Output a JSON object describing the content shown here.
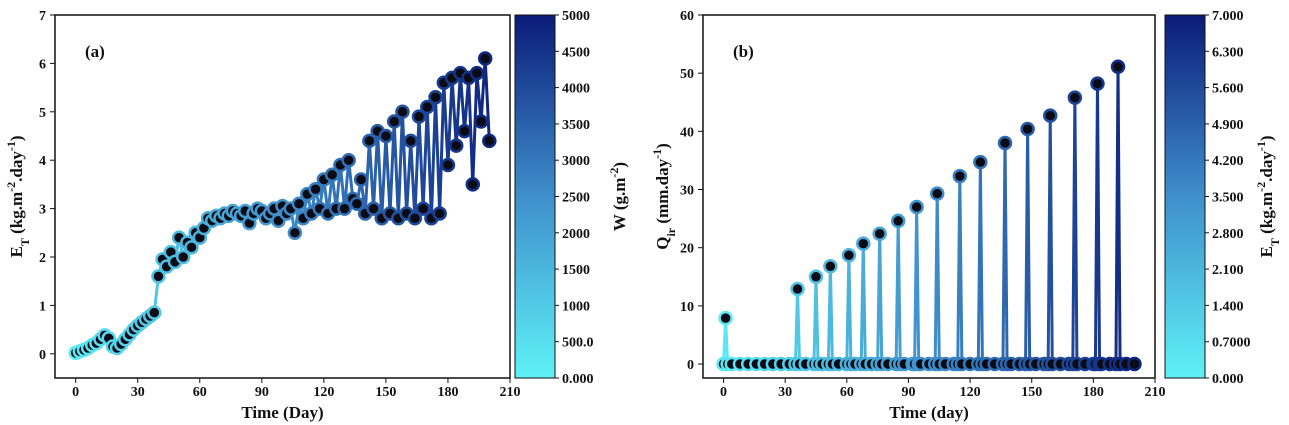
{
  "chart_data": [
    {
      "type": "line",
      "title": "(a)",
      "xlabel": [
        {
          "text": "Time (Day)"
        }
      ],
      "ylabel": [
        {
          "text": "E"
        },
        {
          "text": "T",
          "shift": "sub"
        },
        {
          "text": " (kg.m"
        },
        {
          "text": "-2",
          "shift": "super"
        },
        {
          "text": ".day"
        },
        {
          "text": "-1",
          "shift": "super"
        },
        {
          "text": ")"
        }
      ],
      "x": [
        0,
        2,
        4,
        6,
        8,
        10,
        12,
        14,
        16,
        18,
        20,
        22,
        24,
        26,
        28,
        30,
        32,
        34,
        36,
        38,
        40,
        42,
        44,
        46,
        48,
        50,
        52,
        54,
        56,
        58,
        60,
        62,
        64,
        66,
        68,
        70,
        72,
        74,
        76,
        78,
        80,
        82,
        84,
        86,
        88,
        90,
        92,
        94,
        96,
        98,
        100,
        102,
        104,
        106,
        108,
        110,
        112,
        114,
        116,
        118,
        120,
        122,
        124,
        126,
        128,
        130,
        132,
        134,
        136,
        138,
        140,
        142,
        144,
        146,
        148,
        150,
        152,
        154,
        156,
        158,
        160,
        162,
        164,
        166,
        168,
        170,
        172,
        174,
        176,
        178,
        180,
        182,
        184,
        186,
        188,
        190,
        192,
        194,
        196,
        198,
        200
      ],
      "values": [
        0.02,
        0.05,
        0.08,
        0.12,
        0.18,
        0.22,
        0.3,
        0.38,
        0.32,
        0.15,
        0.12,
        0.2,
        0.3,
        0.4,
        0.5,
        0.58,
        0.65,
        0.72,
        0.78,
        0.85,
        1.6,
        1.95,
        1.8,
        2.1,
        1.9,
        2.4,
        2.0,
        2.3,
        2.2,
        2.5,
        2.4,
        2.6,
        2.8,
        2.75,
        2.85,
        2.8,
        2.9,
        2.85,
        2.95,
        2.9,
        2.85,
        2.95,
        2.7,
        2.9,
        3.0,
        2.95,
        2.8,
        2.9,
        3.0,
        2.75,
        3.05,
        2.9,
        3.0,
        2.5,
        3.1,
        2.8,
        3.3,
        2.9,
        3.4,
        3.0,
        3.6,
        2.9,
        3.7,
        3.0,
        3.9,
        3.0,
        4.0,
        3.2,
        3.1,
        3.6,
        2.9,
        4.4,
        3.0,
        4.6,
        2.8,
        4.5,
        2.9,
        4.8,
        2.8,
        5.0,
        2.9,
        4.4,
        2.8,
        4.9,
        3.0,
        5.1,
        2.8,
        5.3,
        2.9,
        5.6,
        3.9,
        5.7,
        4.3,
        5.8,
        4.6,
        5.7,
        3.5,
        5.8,
        4.8,
        6.1,
        4.4
      ],
      "xlim": [
        -10,
        210
      ],
      "xticks": [
        0,
        30,
        60,
        90,
        120,
        150,
        180,
        210
      ],
      "ylim": [
        -0.5,
        7
      ],
      "yticks": [
        0,
        1,
        2,
        3,
        4,
        5,
        6,
        7
      ],
      "marker_fill": "#0b0b16",
      "colorbar": {
        "label": [
          {
            "text": "W (g.m"
          },
          {
            "text": "-2",
            "shift": "super"
          },
          {
            "text": ")"
          }
        ],
        "lim": [
          0,
          5000
        ],
        "ticks": [
          {
            "value": 0,
            "label": "0.000"
          },
          {
            "value": 500,
            "label": "500.0"
          },
          1000,
          1500,
          2000,
          2500,
          3000,
          3500,
          4000,
          4500,
          5000
        ],
        "colors": [
          "#5ef2f7",
          "#3f8fcc",
          "#0a1b78"
        ]
      }
    },
    {
      "type": "line",
      "title": "(b)",
      "xlabel": [
        {
          "text": "Time (day)"
        }
      ],
      "ylabel": [
        {
          "text": "Q"
        },
        {
          "text": "ir",
          "shift": "sub"
        },
        {
          "text": " (mm.day"
        },
        {
          "text": "-1",
          "shift": "super"
        },
        {
          "text": ")"
        }
      ],
      "x": [
        0,
        1,
        2,
        4,
        8,
        12,
        16,
        20,
        24,
        28,
        32,
        35,
        36,
        37,
        40,
        44,
        45,
        46,
        48,
        51,
        52,
        53,
        56,
        60,
        61,
        62,
        64,
        67,
        68,
        69,
        72,
        75,
        76,
        77,
        80,
        84,
        85,
        86,
        88,
        92,
        93,
        94,
        95,
        96,
        100,
        103,
        104,
        105,
        108,
        112,
        114,
        115,
        116,
        120,
        124,
        125,
        126,
        128,
        132,
        136,
        137,
        138,
        140,
        144,
        147,
        148,
        149,
        152,
        156,
        158,
        159,
        160,
        164,
        168,
        170,
        171,
        172,
        176,
        180,
        181,
        182,
        183,
        184,
        188,
        191,
        192,
        193,
        196,
        200
      ],
      "values": [
        0,
        7.9,
        0,
        0,
        0,
        0,
        0,
        0,
        0,
        0,
        0,
        0,
        12.9,
        0,
        0,
        0,
        15,
        0,
        0,
        0,
        16.8,
        0,
        0,
        0,
        18.7,
        0,
        0,
        0,
        20.7,
        0,
        0,
        0,
        22.4,
        0,
        0,
        0,
        24.6,
        0,
        0,
        0,
        0,
        27,
        0,
        0,
        0,
        0,
        29.3,
        0,
        0,
        0,
        0,
        32.3,
        0,
        0,
        0,
        34.7,
        0,
        0,
        0,
        0,
        38,
        0,
        0,
        0,
        0,
        40.4,
        0,
        0,
        0,
        0,
        42.7,
        0,
        0,
        0,
        0,
        45.8,
        0,
        0,
        0,
        0,
        48.2,
        0,
        0,
        0,
        0,
        51.1,
        0,
        0,
        0
      ],
      "xlim": [
        -10,
        210
      ],
      "xticks": [
        0,
        30,
        60,
        90,
        120,
        150,
        180,
        210
      ],
      "ylim": [
        -2.4,
        60
      ],
      "yticks": [
        0,
        10,
        20,
        30,
        40,
        50,
        60
      ],
      "marker_fill": "#0b0b16",
      "colorbar": {
        "label": [
          {
            "text": "E"
          },
          {
            "text": "T",
            "shift": "sub"
          },
          {
            "text": " (kg.m"
          },
          {
            "text": "-2",
            "shift": "super"
          },
          {
            "text": ".day"
          },
          {
            "text": "-1",
            "shift": "super"
          },
          {
            "text": ")"
          }
        ],
        "lim": [
          0,
          7
        ],
        "ticks": [
          {
            "value": 0,
            "label": "0.000"
          },
          {
            "value": 0.7,
            "label": "0.7000"
          },
          {
            "value": 1.4,
            "label": "1.400"
          },
          {
            "value": 2.1,
            "label": "2.100"
          },
          {
            "value": 2.8,
            "label": "2.800"
          },
          {
            "value": 3.5,
            "label": "3.500"
          },
          {
            "value": 4.2,
            "label": "4.200"
          },
          {
            "value": 4.9,
            "label": "4.900"
          },
          {
            "value": 5.6,
            "label": "5.600"
          },
          {
            "value": 6.3,
            "label": "6.300"
          },
          {
            "value": 7,
            "label": "7.000"
          }
        ],
        "colors": [
          "#5ef2f7",
          "#3f8fcc",
          "#0a1b78"
        ]
      }
    }
  ]
}
